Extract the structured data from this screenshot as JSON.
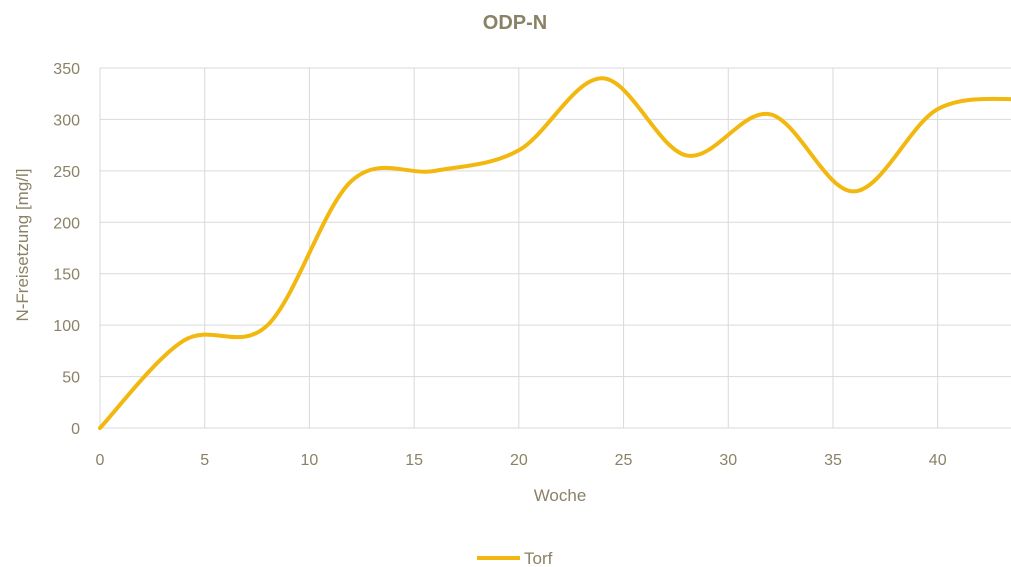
{
  "chart_data": {
    "type": "line",
    "title": "ODP-N",
    "xlabel": "Woche",
    "ylabel": "N-Freisetzung [mg/l]",
    "xlim": [
      0,
      43.5
    ],
    "ylim": [
      0,
      350
    ],
    "x_ticks": [
      "0",
      "5",
      "10",
      "15",
      "20",
      "25",
      "30",
      "35",
      "40"
    ],
    "y_ticks": [
      "0",
      "50",
      "100",
      "150",
      "200",
      "250",
      "300",
      "350"
    ],
    "grid": true,
    "legend_position": "bottom",
    "series": [
      {
        "name": "Torf",
        "color": "#f2b80f",
        "x": [
          0,
          4,
          8,
          12,
          16,
          20,
          24,
          28,
          32,
          36,
          40,
          44
        ],
        "y": [
          0,
          85,
          100,
          240,
          250,
          270,
          340,
          265,
          305,
          230,
          310,
          320
        ]
      }
    ]
  }
}
